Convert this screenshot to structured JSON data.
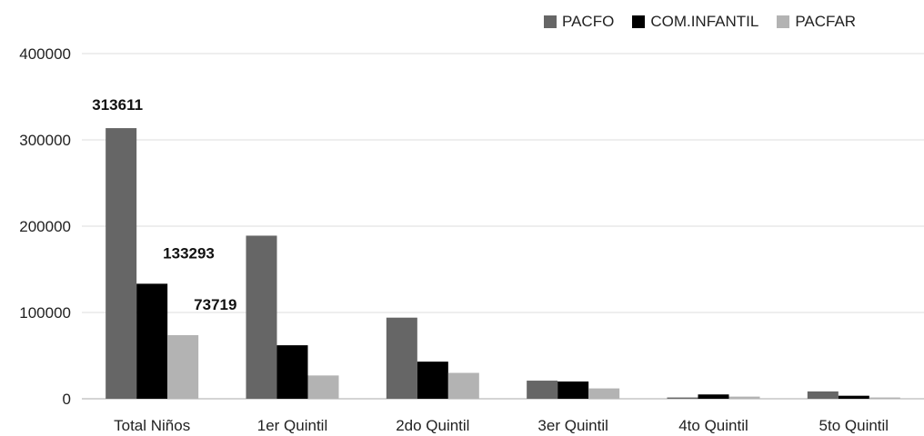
{
  "chart_data": {
    "type": "bar",
    "title": "",
    "xlabel": "",
    "ylabel": "",
    "categories": [
      "Total Niños",
      "1er Quintil",
      "2do Quintil",
      "3er Quintil",
      "4to Quintil",
      "5to Quintil"
    ],
    "series": [
      {
        "name": "PACFO",
        "color": "#666666",
        "values": [
          313611,
          189000,
          94000,
          21000,
          1500,
          8500
        ]
      },
      {
        "name": "COM.INFANTIL",
        "color": "#000000",
        "values": [
          133293,
          62000,
          43000,
          20000,
          5000,
          3500
        ]
      },
      {
        "name": "PACFAR",
        "color": "#b3b3b3",
        "values": [
          73719,
          27000,
          30000,
          12000,
          2500,
          1500
        ]
      }
    ],
    "data_labels": [
      {
        "series": 0,
        "category": 0,
        "text": "313611"
      },
      {
        "series": 1,
        "category": 0,
        "text": "133293"
      },
      {
        "series": 2,
        "category": 0,
        "text": "73719"
      }
    ],
    "ylim": [
      0,
      400000
    ],
    "yticks": [
      "400000",
      "300000",
      "200000",
      "100000",
      "0"
    ],
    "grid": true,
    "legend_position": "top-right"
  }
}
